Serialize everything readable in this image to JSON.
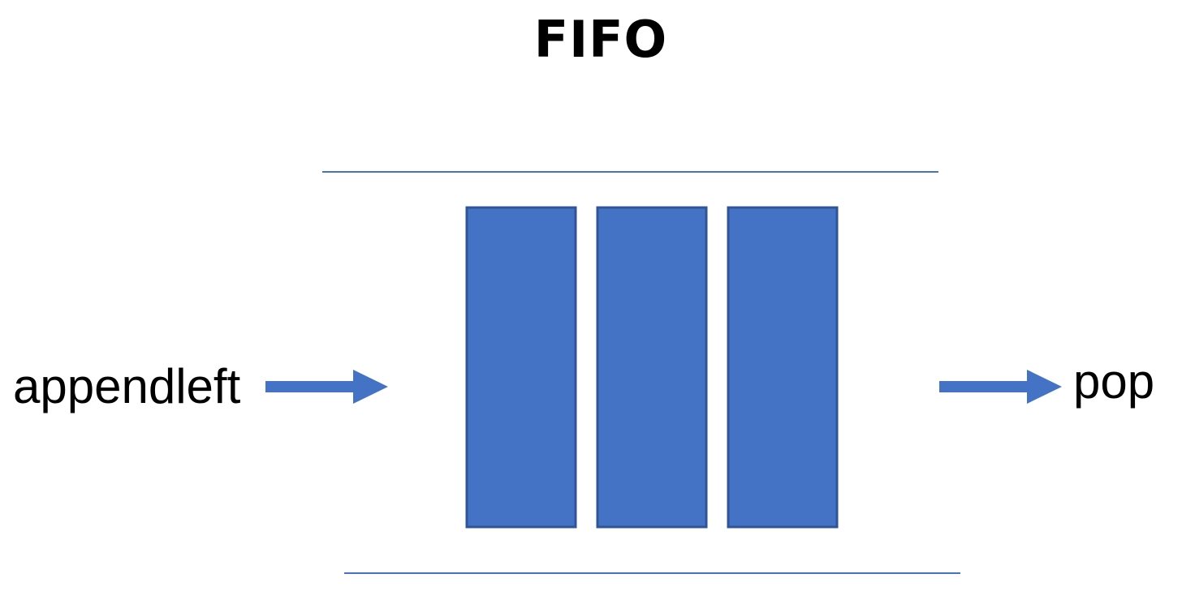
{
  "title": "FIFO",
  "labels": {
    "enqueue": "appendleft",
    "dequeue": "pop"
  },
  "colors": {
    "block_fill": "#4472C4",
    "block_stroke": "#2F5597",
    "line": "#4472C4",
    "arrow": "#4472C4",
    "text": "#000000"
  },
  "queue": {
    "item_count": 3
  }
}
